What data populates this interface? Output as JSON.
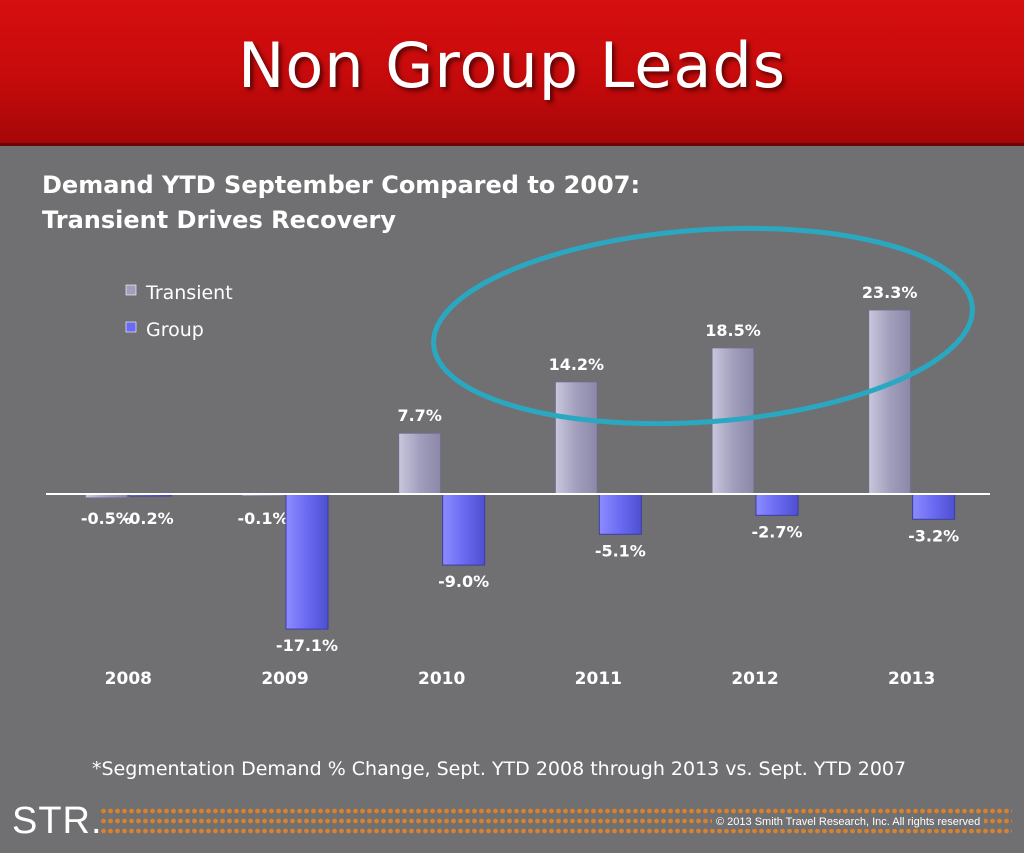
{
  "header": {
    "title": "Non Group Leads"
  },
  "chart_data": {
    "type": "bar",
    "title": "Demand YTD September Compared to 2007:",
    "subtitle": "Transient Drives Recovery",
    "categories": [
      "2008",
      "2009",
      "2010",
      "2011",
      "2012",
      "2013"
    ],
    "series": [
      {
        "name": "Transient",
        "values": [
          -0.5,
          -0.1,
          7.7,
          14.2,
          18.5,
          23.3
        ],
        "labels": [
          "-0.5%",
          "-0.1%",
          "7.7%",
          "14.2%",
          "18.5%",
          "23.3%"
        ],
        "color": "#a29fbd"
      },
      {
        "name": "Group",
        "values": [
          -0.2,
          -17.1,
          -9.0,
          -5.1,
          -2.7,
          -3.2
        ],
        "labels": [
          "-0.2%",
          "-17.1%",
          "-9.0%",
          "-5.1%",
          "-2.7%",
          "-3.2%"
        ],
        "color": "#6a6af2"
      }
    ],
    "ylim": [
      -17.1,
      23.3
    ],
    "grid": false,
    "legend": "top-left",
    "annotation": "ellipse highlighting Transient bars 2011-2013",
    "annotation_color": "#2aa8c2"
  },
  "footnote": "*Segmentation Demand % Change, Sept. YTD 2008 through 2013 vs. Sept. YTD 2007",
  "footer": {
    "logo": "STR.",
    "copyright": "© 2013 Smith Travel Research, Inc. All rights reserved",
    "accent_color": "#d9822b"
  }
}
